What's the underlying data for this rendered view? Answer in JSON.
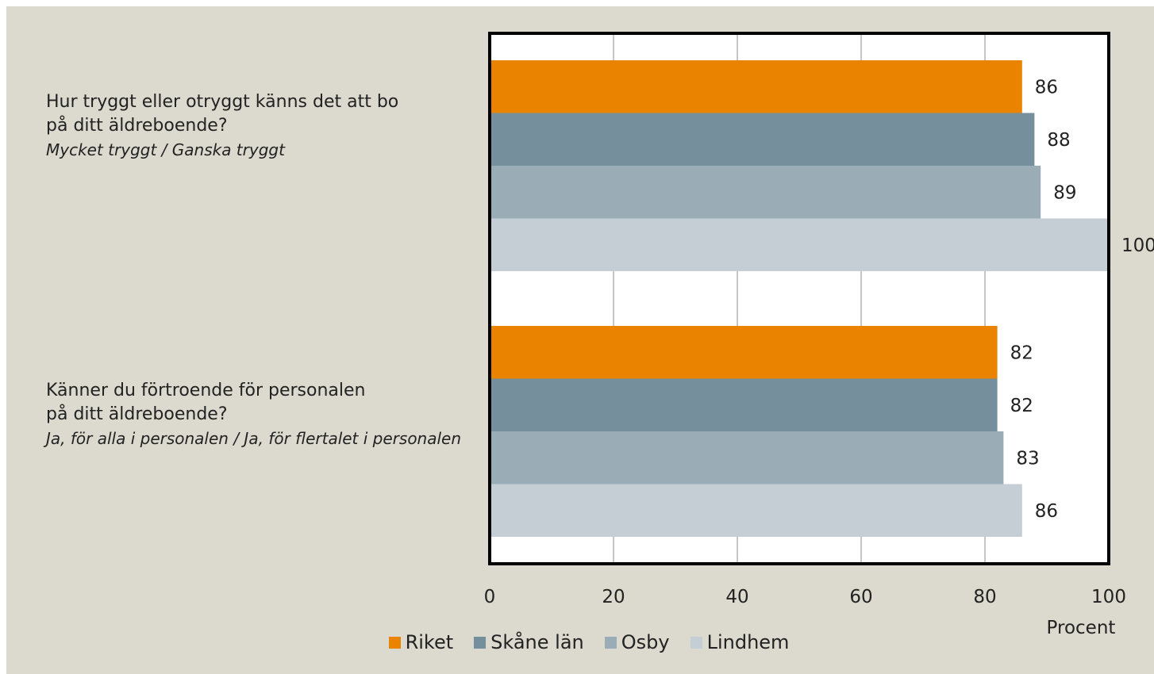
{
  "chart_data": {
    "type": "bar",
    "orientation": "horizontal",
    "categories": [
      {
        "title": "Hur tryggt eller otryggt känns det att bo\npå ditt äldreboende?",
        "note": "Mycket tryggt / Ganska tryggt"
      },
      {
        "title": "Känner du förtroende för personalen\npå ditt äldreboende?",
        "note": "Ja, för alla i personalen / Ja, för flertalet i personalen"
      }
    ],
    "series": [
      {
        "name": "Riket",
        "color": "#e98300",
        "values": [
          86,
          82
        ]
      },
      {
        "name": "Skåne län",
        "color": "#758f9c",
        "values": [
          88,
          82
        ]
      },
      {
        "name": "Osby",
        "color": "#9aadb7",
        "values": [
          89,
          83
        ]
      },
      {
        "name": "Lindhem",
        "color": "#c4ced4",
        "values": [
          100,
          86
        ]
      }
    ],
    "xlim": [
      0,
      100
    ],
    "xticks": [
      "0",
      "20",
      "40",
      "60",
      "80",
      "100"
    ],
    "xlabel": "Procent",
    "grid": true,
    "legend_position": "bottom",
    "data_labels": true
  }
}
